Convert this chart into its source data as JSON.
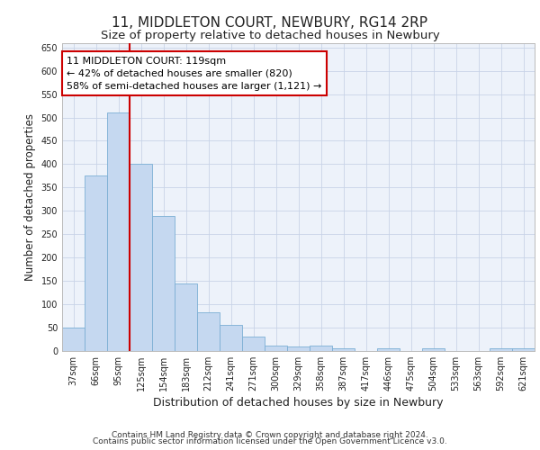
{
  "title": "11, MIDDLETON COURT, NEWBURY, RG14 2RP",
  "subtitle": "Size of property relative to detached houses in Newbury",
  "xlabel": "Distribution of detached houses by size in Newbury",
  "ylabel": "Number of detached properties",
  "categories": [
    "37sqm",
    "66sqm",
    "95sqm",
    "125sqm",
    "154sqm",
    "183sqm",
    "212sqm",
    "241sqm",
    "271sqm",
    "300sqm",
    "329sqm",
    "358sqm",
    "387sqm",
    "417sqm",
    "446sqm",
    "475sqm",
    "504sqm",
    "533sqm",
    "563sqm",
    "592sqm",
    "621sqm"
  ],
  "values": [
    50,
    375,
    510,
    400,
    290,
    145,
    82,
    55,
    30,
    11,
    10,
    11,
    5,
    0,
    5,
    0,
    5,
    0,
    0,
    5,
    5
  ],
  "bar_color": "#c5d8f0",
  "bar_edgecolor": "#7bafd4",
  "vline_color": "#cc0000",
  "annotation_text": "11 MIDDLETON COURT: 119sqm\n← 42% of detached houses are smaller (820)\n58% of semi-detached houses are larger (1,121) →",
  "annotation_box_color": "#ffffff",
  "annotation_box_edgecolor": "#cc0000",
  "ylim": [
    0,
    660
  ],
  "yticks": [
    0,
    50,
    100,
    150,
    200,
    250,
    300,
    350,
    400,
    450,
    500,
    550,
    600,
    650
  ],
  "footer_line1": "Contains HM Land Registry data © Crown copyright and database right 2024.",
  "footer_line2": "Contains public sector information licensed under the Open Government Licence v3.0.",
  "background_color": "#edf2fa",
  "grid_color": "#c8d4e8",
  "title_fontsize": 11,
  "subtitle_fontsize": 9.5,
  "tick_fontsize": 7,
  "ylabel_fontsize": 8.5,
  "xlabel_fontsize": 9,
  "annotation_fontsize": 8,
  "footer_fontsize": 6.5
}
